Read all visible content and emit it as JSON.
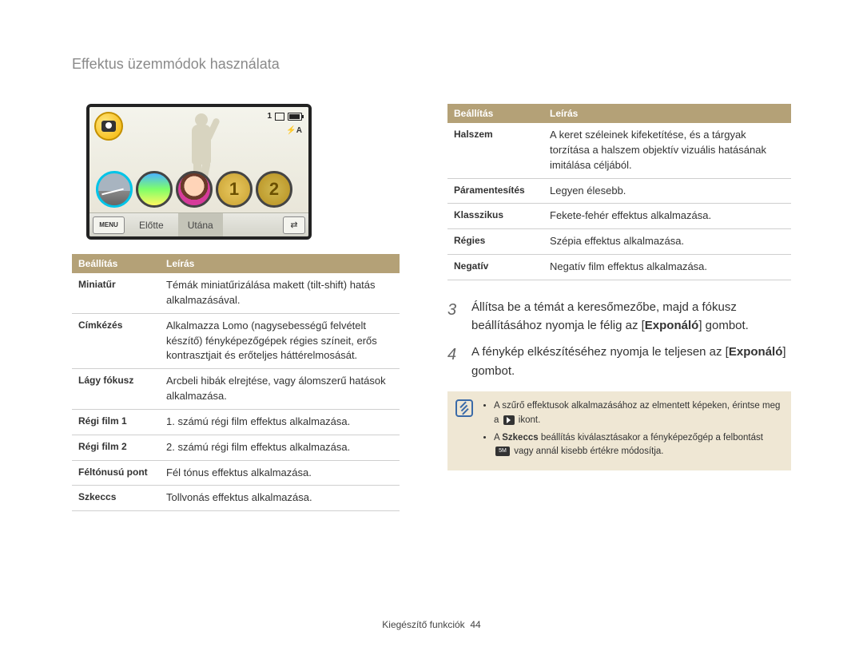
{
  "title": "Effektus üzemmódok használata",
  "camera": {
    "counter": "1",
    "flash": "⚡A",
    "menu": "MENU",
    "tab_before": "Előtte",
    "tab_after": "Utána",
    "switch_glyph": "⇄"
  },
  "table_headers": {
    "setting": "Beállítás",
    "desc": "Leírás"
  },
  "left_table": [
    {
      "name": "Miniatűr",
      "desc": "Témák miniatűrizálása makett (tilt-shift) hatás alkalmazásával."
    },
    {
      "name": "Címkézés",
      "desc": "Alkalmazza Lomo (nagysebességű felvételt készítő) fényképezőgépek régies színeit, erős kontrasztjait és erőteljes háttérelmosását."
    },
    {
      "name": "Lágy fókusz",
      "desc": "Arcbeli hibák elrejtése, vagy álomszerű hatások alkalmazása."
    },
    {
      "name": "Régi film 1",
      "desc": "1. számú régi film effektus alkalmazása."
    },
    {
      "name": "Régi film 2",
      "desc": "2. számú régi film effektus alkalmazása."
    },
    {
      "name": "Féltónusú pont",
      "desc": "Fél tónus effektus alkalmazása."
    },
    {
      "name": "Szkeccs",
      "desc": "Tollvonás effektus alkalmazása."
    }
  ],
  "right_table": [
    {
      "name": "Halszem",
      "desc": "A keret széleinek kifeketítése, és a tárgyak torzítása a halszem objektív vizuális hatásának imitálása céljából."
    },
    {
      "name": "Páramentesítés",
      "desc": "Legyen élesebb."
    },
    {
      "name": "Klasszikus",
      "desc": "Fekete-fehér effektus alkalmazása."
    },
    {
      "name": "Régies",
      "desc": "Szépia effektus alkalmazása."
    },
    {
      "name": "Negatív",
      "desc": "Negatív film effektus alkalmazása."
    }
  ],
  "steps": {
    "s3_num": "3",
    "s3_pre": "Állítsa be a témát a keresőmezőbe, majd a fókusz beállításához nyomja le félig az [",
    "s3_bold": "Exponáló",
    "s3_post": "] gombot.",
    "s4_num": "4",
    "s4_pre": "A fénykép elkészítéséhez nyomja le teljesen az [",
    "s4_bold": "Exponáló",
    "s4_post": "] gombot."
  },
  "note": {
    "li1_a": "A szűrő effektusok alkalmazásához az elmentett képeken, érintse meg a ",
    "li1_b": " ikont.",
    "li2_a": "A ",
    "li2_bold": "Szkeccs",
    "li2_b": " beállítás kiválasztásakor a fényképezőgép a felbontást ",
    "li2_c": " vagy annál kisebb értékre módosítja.",
    "res_label": "5M"
  },
  "footer": {
    "label": "Kiegészítő funkciók",
    "page": "44"
  }
}
